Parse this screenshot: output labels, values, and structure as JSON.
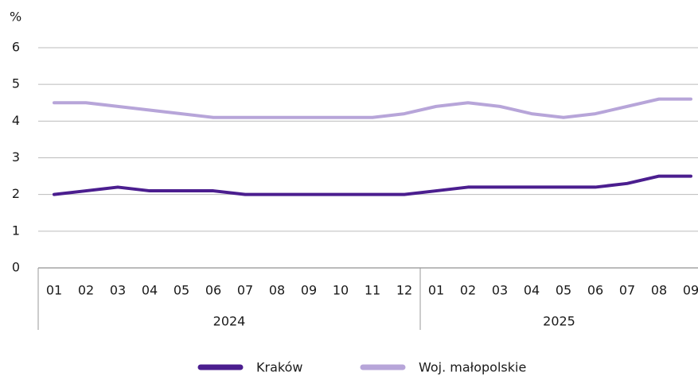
{
  "chart_data": {
    "type": "line",
    "y_label": "%",
    "category_groups": [
      {
        "label": "2024",
        "categories": [
          "01",
          "02",
          "03",
          "04",
          "05",
          "06",
          "07",
          "08",
          "09",
          "10",
          "11",
          "12"
        ]
      },
      {
        "label": "2025",
        "categories": [
          "01",
          "02",
          "03",
          "04",
          "05",
          "06",
          "07",
          "08",
          "09"
        ]
      }
    ],
    "series": [
      {
        "name": "Kraków",
        "color": "#4b1e8f",
        "values": [
          2.0,
          2.1,
          2.2,
          2.1,
          2.1,
          2.1,
          2.0,
          2.0,
          2.0,
          2.0,
          2.0,
          2.0,
          2.1,
          2.2,
          2.2,
          2.2,
          2.2,
          2.2,
          2.3,
          2.5,
          2.5
        ]
      },
      {
        "name": "Woj. małopolskie",
        "color": "#b7a5d9",
        "values": [
          4.5,
          4.5,
          4.4,
          4.3,
          4.2,
          4.1,
          4.1,
          4.1,
          4.1,
          4.1,
          4.1,
          4.2,
          4.4,
          4.5,
          4.4,
          4.2,
          4.1,
          4.2,
          4.4,
          4.6,
          4.6
        ]
      }
    ],
    "ylim": [
      0,
      6
    ],
    "yticks": [
      0,
      1,
      2,
      3,
      4,
      5,
      6
    ],
    "grid": true,
    "legend": "bottom"
  }
}
